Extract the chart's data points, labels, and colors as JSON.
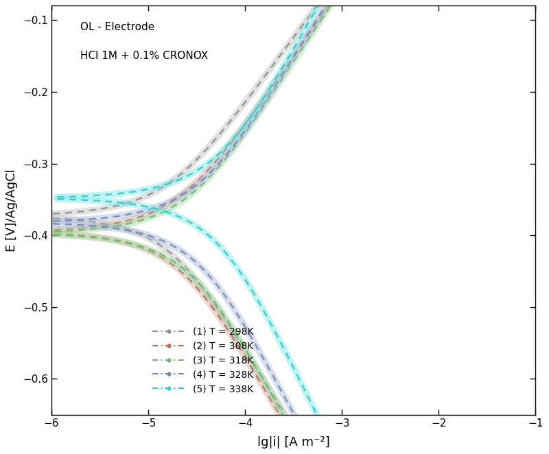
{
  "title_line1": "OL - Electrode",
  "title_line2": "HCl 1M + 0.1% CRONOX",
  "xlabel": "lg|i| [A m⁻²]",
  "ylabel": "E [V]/Ag/AgCl",
  "xlim": [
    -6,
    -1
  ],
  "ylim": [
    -0.65,
    -0.08
  ],
  "xticks": [
    -6,
    -5,
    -4,
    -3,
    -2,
    -1
  ],
  "yticks": [
    -0.6,
    -0.5,
    -0.4,
    -0.3,
    -0.2,
    -0.1
  ],
  "curves": [
    {
      "label": "(1) T = 298K",
      "color": "#909090",
      "color_light": "#c0c0c0",
      "ecorr": -0.373,
      "log_icorr": -4.85,
      "ba": 0.08,
      "bc": 0.095
    },
    {
      "label": "(2) T = 308K",
      "color": "#b07060",
      "color_light": "#d4a898",
      "ecorr": -0.395,
      "log_icorr": -4.75,
      "ba": 0.085,
      "bc": 0.1
    },
    {
      "label": "(3) T = 318K",
      "color": "#70b870",
      "color_light": "#a0d8a0",
      "ecorr": -0.397,
      "log_icorr": -4.65,
      "ba": 0.09,
      "bc": 0.105
    },
    {
      "label": "(4) T = 328K",
      "color": "#7888b8",
      "color_light": "#a8b8d8",
      "ecorr": -0.382,
      "log_icorr": -4.55,
      "ba": 0.095,
      "bc": 0.11
    },
    {
      "label": "(5) T = 338K",
      "color": "#38c8c8",
      "color_light": "#78e8e8",
      "ecorr": -0.348,
      "log_icorr": -4.35,
      "ba": 0.105,
      "bc": 0.12
    }
  ],
  "background_color": "#ffffff"
}
